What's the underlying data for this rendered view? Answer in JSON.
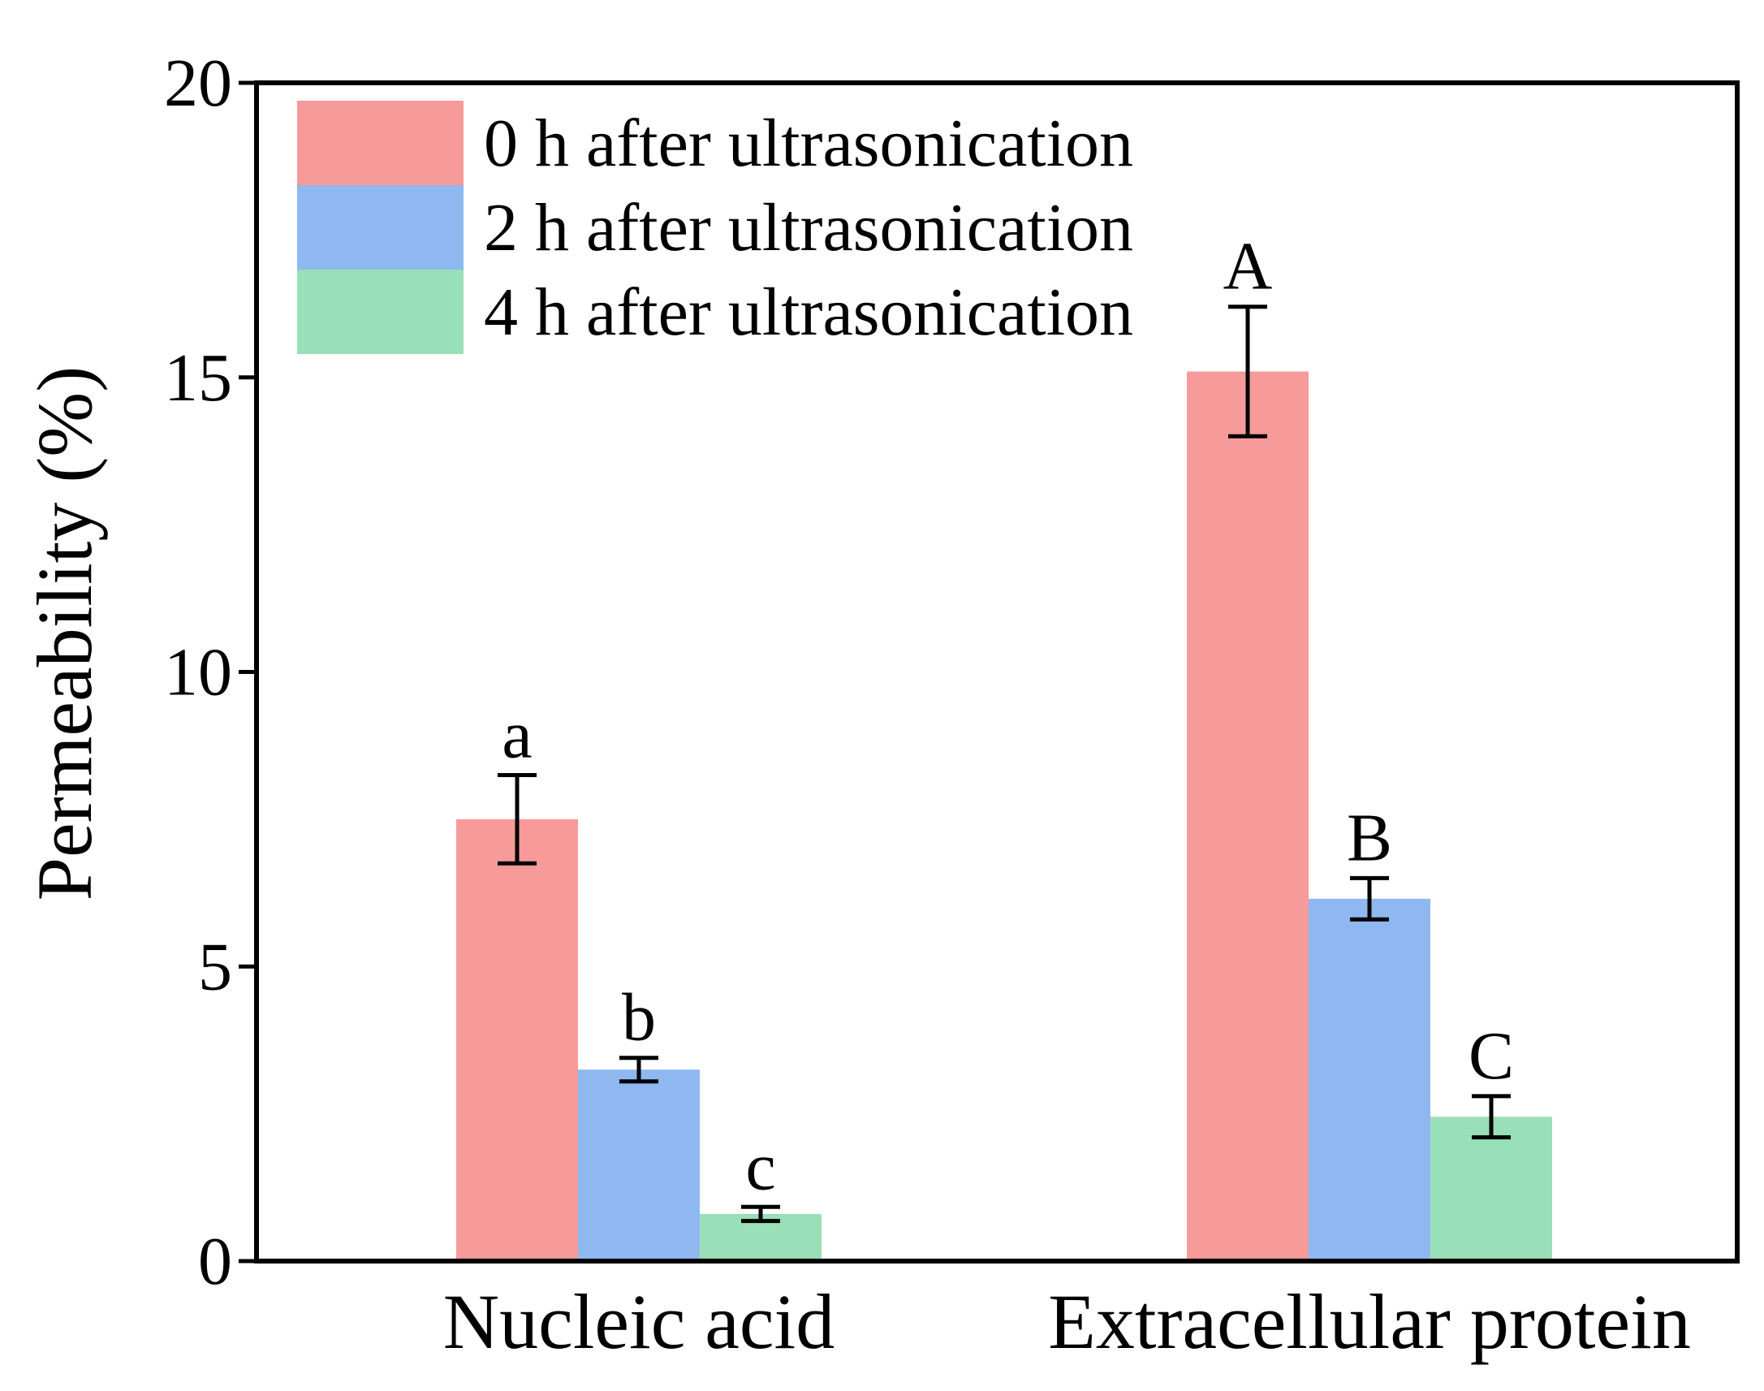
{
  "chart_data": {
    "type": "bar",
    "title": "",
    "xlabel": "",
    "ylabel": "Permeability (%)",
    "ylim": [
      0,
      20
    ],
    "yticks": [
      "0",
      "5",
      "10",
      "15",
      "20"
    ],
    "grid": false,
    "legend_position": "top-left",
    "categories": [
      "Nucleic acid",
      "Extracellular protein"
    ],
    "series": [
      {
        "name": "0 h after ultrasonication",
        "color": "#f79a9a",
        "values": [
          7.5,
          15.1
        ],
        "errors": [
          0.75,
          1.1
        ],
        "labels": [
          "a",
          "A"
        ]
      },
      {
        "name": "2 h after ultrasonication",
        "color": "#8fb8f0",
        "values": [
          3.25,
          6.15
        ],
        "errors": [
          0.2,
          0.35
        ],
        "labels": [
          "b",
          "B"
        ]
      },
      {
        "name": "4 h after ultrasonication",
        "color": "#99dfb7",
        "values": [
          0.8,
          2.45
        ],
        "errors": [
          0.12,
          0.35
        ],
        "labels": [
          "c",
          "C"
        ]
      }
    ]
  }
}
